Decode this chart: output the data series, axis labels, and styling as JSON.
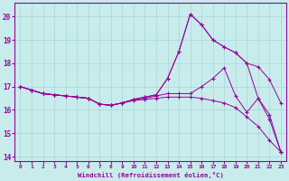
{
  "xlabel": "Windchill (Refroidissement éolien,°C)",
  "xlim": [
    -0.5,
    23.5
  ],
  "ylim": [
    13.8,
    20.6
  ],
  "yticks": [
    14,
    15,
    16,
    17,
    18,
    19,
    20
  ],
  "xticks": [
    0,
    1,
    2,
    3,
    4,
    5,
    6,
    7,
    8,
    9,
    10,
    11,
    12,
    13,
    14,
    15,
    16,
    17,
    18,
    19,
    20,
    21,
    22,
    23
  ],
  "background_color": "#c8ecec",
  "grid_color": "#aad4d4",
  "line_color": "#990099",
  "lines": [
    {
      "x": [
        0,
        1,
        2,
        3,
        4,
        5,
        6,
        7,
        8,
        9,
        10,
        11,
        12,
        13,
        14,
        15,
        16,
        17,
        18,
        19,
        20,
        21,
        22,
        23
      ],
      "y": [
        17.0,
        16.85,
        16.7,
        16.65,
        16.6,
        16.55,
        16.5,
        16.25,
        16.2,
        16.3,
        16.4,
        16.45,
        16.5,
        16.55,
        16.55,
        16.55,
        16.5,
        16.4,
        16.3,
        16.1,
        15.7,
        15.3,
        14.7,
        14.2
      ]
    },
    {
      "x": [
        0,
        1,
        2,
        3,
        4,
        5,
        6,
        7,
        8,
        9,
        10,
        11,
        12,
        13,
        14,
        15,
        16,
        17,
        18,
        19,
        20,
        21,
        22,
        23
      ],
      "y": [
        17.0,
        16.85,
        16.7,
        16.65,
        16.6,
        16.55,
        16.5,
        16.25,
        16.2,
        16.3,
        16.45,
        16.5,
        16.6,
        16.7,
        16.7,
        16.7,
        17.0,
        17.35,
        17.8,
        16.6,
        15.9,
        16.5,
        15.8,
        14.2
      ]
    },
    {
      "x": [
        0,
        1,
        2,
        3,
        4,
        5,
        6,
        7,
        8,
        9,
        10,
        11,
        12,
        13,
        14,
        15,
        16,
        17,
        18,
        19,
        20,
        21,
        22,
        23
      ],
      "y": [
        17.0,
        16.85,
        16.7,
        16.65,
        16.6,
        16.55,
        16.5,
        16.25,
        16.2,
        16.3,
        16.45,
        16.55,
        16.65,
        17.35,
        18.5,
        20.1,
        19.65,
        19.0,
        18.7,
        18.45,
        18.0,
        17.85,
        17.3,
        16.3
      ]
    },
    {
      "x": [
        0,
        1,
        2,
        3,
        4,
        5,
        6,
        7,
        8,
        9,
        10,
        11,
        12,
        13,
        14,
        15,
        16,
        17,
        18,
        19,
        20,
        21,
        22,
        23
      ],
      "y": [
        17.0,
        16.85,
        16.7,
        16.65,
        16.6,
        16.55,
        16.5,
        16.25,
        16.2,
        16.3,
        16.45,
        16.55,
        16.65,
        17.35,
        18.5,
        20.1,
        19.65,
        19.0,
        18.7,
        18.45,
        18.0,
        16.5,
        15.6,
        14.2
      ]
    }
  ]
}
